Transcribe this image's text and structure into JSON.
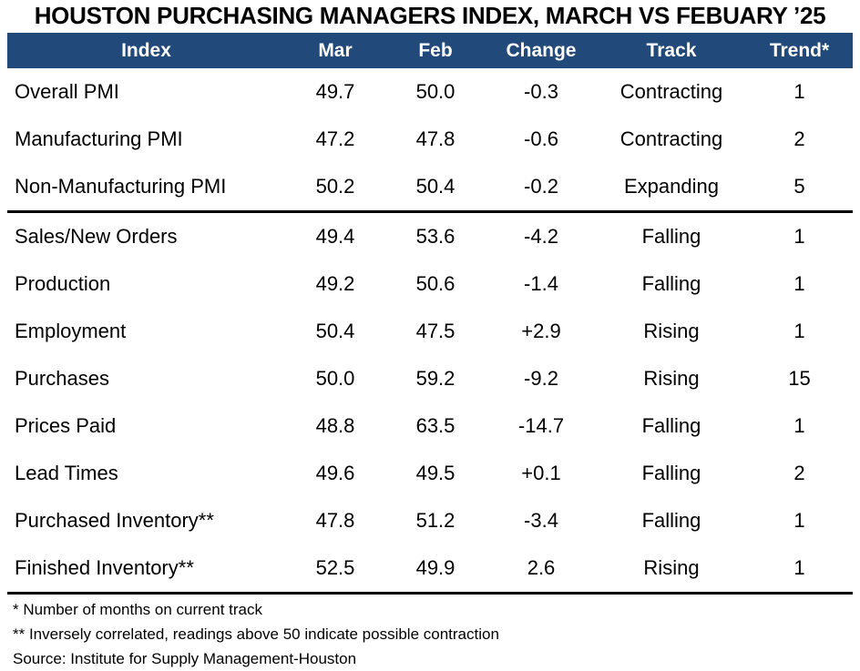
{
  "title": "HOUSTON PURCHASING MANAGERS INDEX, MARCH VS FEBUARY ’25",
  "colors": {
    "header_bg": "#214979",
    "header_text": "#ffffff",
    "divider": "#000000",
    "body_text": "#000000"
  },
  "table": {
    "columns": [
      "Index",
      "Mar",
      "Feb",
      "Change",
      "Track",
      "Trend*"
    ],
    "sections": [
      {
        "rows": [
          {
            "name": "Overall PMI",
            "mar": "49.7",
            "feb": "50.0",
            "change": "-0.3",
            "track": "Contracting",
            "trend": "1"
          },
          {
            "name": "Manufacturing PMI",
            "mar": "47.2",
            "feb": "47.8",
            "change": "-0.6",
            "track": "Contracting",
            "trend": "2"
          },
          {
            "name": "Non-Manufacturing PMI",
            "mar": "50.2",
            "feb": "50.4",
            "change": "-0.2",
            "track": "Expanding",
            "trend": "5"
          }
        ]
      },
      {
        "rows": [
          {
            "name": "Sales/New Orders",
            "mar": "49.4",
            "feb": "53.6",
            "change": "-4.2",
            "track": "Falling",
            "trend": "1"
          },
          {
            "name": "Production",
            "mar": "49.2",
            "feb": "50.6",
            "change": "-1.4",
            "track": "Falling",
            "trend": "1"
          },
          {
            "name": "Employment",
            "mar": "50.4",
            "feb": "47.5",
            "change": "+2.9",
            "track": "Rising",
            "trend": "1"
          },
          {
            "name": "Purchases",
            "mar": "50.0",
            "feb": "59.2",
            "change": "-9.2",
            "track": "Rising",
            "trend": "15"
          },
          {
            "name": "Prices Paid",
            "mar": "48.8",
            "feb": "63.5",
            "change": "-14.7",
            "track": "Falling",
            "trend": "1"
          },
          {
            "name": "Lead Times",
            "mar": "49.6",
            "feb": "49.5",
            "change": "+0.1",
            "track": "Falling",
            "trend": "2"
          },
          {
            "name": "Purchased Inventory**",
            "mar": "47.8",
            "feb": "51.2",
            "change": "-3.4",
            "track": "Falling",
            "trend": "1"
          },
          {
            "name": "Finished Inventory**",
            "mar": "52.5",
            "feb": "49.9",
            "change": "2.6",
            "track": "Rising",
            "trend": "1"
          }
        ]
      }
    ]
  },
  "footnotes": [
    "* Number of months on current track",
    "** Inversely correlated, readings above 50 indicate possible contraction"
  ],
  "source": "Source: Institute for Supply Management-Houston",
  "chart_data": {
    "type": "table",
    "title": "HOUSTON PURCHASING MANAGERS INDEX, MARCH VS FEBUARY '25",
    "columns": [
      "Index",
      "Mar",
      "Feb",
      "Change",
      "Track",
      "Trend*"
    ],
    "rows": [
      [
        "Overall PMI",
        49.7,
        50.0,
        -0.3,
        "Contracting",
        1
      ],
      [
        "Manufacturing PMI",
        47.2,
        47.8,
        -0.6,
        "Contracting",
        2
      ],
      [
        "Non-Manufacturing PMI",
        50.2,
        50.4,
        -0.2,
        "Expanding",
        5
      ],
      [
        "Sales/New Orders",
        49.4,
        53.6,
        -4.2,
        "Falling",
        1
      ],
      [
        "Production",
        49.2,
        50.6,
        -1.4,
        "Falling",
        1
      ],
      [
        "Employment",
        50.4,
        47.5,
        2.9,
        "Rising",
        1
      ],
      [
        "Purchases",
        50.0,
        59.2,
        -9.2,
        "Rising",
        15
      ],
      [
        "Prices Paid",
        48.8,
        63.5,
        -14.7,
        "Falling",
        1
      ],
      [
        "Lead Times",
        49.6,
        49.5,
        0.1,
        "Falling",
        2
      ],
      [
        "Purchased Inventory**",
        47.8,
        51.2,
        -3.4,
        "Falling",
        1
      ],
      [
        "Finished Inventory**",
        52.5,
        49.9,
        2.6,
        "Rising",
        1
      ]
    ]
  }
}
